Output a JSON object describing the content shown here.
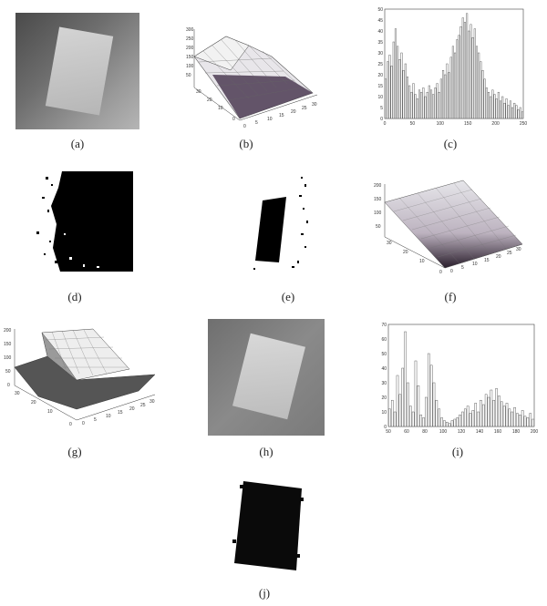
{
  "captions": [
    "(a)",
    "(b)",
    "(c)",
    "(d)",
    "(e)",
    "(f)",
    "(g)",
    "(h)",
    "(i)",
    "(j)"
  ],
  "ticks": {
    "b_z": [
      "300",
      "250",
      "200",
      "150",
      "100",
      "50"
    ],
    "b_y": [
      "30",
      "20",
      "10",
      "0"
    ],
    "b_x": [
      "0",
      "5",
      "10",
      "15",
      "20",
      "25",
      "30"
    ],
    "f_z": [
      "200",
      "150",
      "100",
      "50"
    ],
    "f_y": [
      "30",
      "20",
      "10",
      "0"
    ],
    "f_x": [
      "0",
      "5",
      "10",
      "15",
      "20",
      "25",
      "30"
    ],
    "g_z": [
      "200",
      "150",
      "100",
      "50",
      "0"
    ],
    "g_y": [
      "30",
      "20",
      "10",
      "0"
    ],
    "g_x": [
      "0",
      "5",
      "10",
      "15",
      "20",
      "25",
      "30"
    ]
  },
  "chart_data": [
    {
      "type": "bar",
      "xlim": [
        0,
        250
      ],
      "ylim": [
        0,
        50
      ],
      "x_ticks": [
        "0",
        "50",
        "100",
        "150",
        "200",
        "250"
      ],
      "y_ticks": [
        "0",
        "5",
        "10",
        "15",
        "20",
        "25",
        "30",
        "35",
        "40",
        "45",
        "50"
      ],
      "values": [
        18,
        26,
        29,
        24,
        35,
        41,
        33,
        27,
        30,
        22,
        25,
        19,
        15,
        12,
        16,
        11,
        9,
        13,
        12,
        14,
        10,
        12,
        15,
        13,
        11,
        14,
        16,
        12,
        18,
        22,
        20,
        25,
        21,
        28,
        33,
        30,
        36,
        38,
        42,
        46,
        44,
        48,
        40,
        43,
        37,
        41,
        33,
        30,
        26,
        22,
        18,
        14,
        12,
        10,
        13,
        11,
        9,
        12,
        8,
        10,
        7,
        9,
        6,
        8,
        5,
        7,
        6,
        4,
        5,
        3
      ]
    },
    {
      "type": "bar",
      "xlim": [
        50,
        200
      ],
      "ylim": [
        0,
        70
      ],
      "x_ticks": [
        "50",
        "60",
        "80",
        "100",
        "120",
        "140",
        "160",
        "180",
        "200"
      ],
      "y_ticks": [
        "0",
        "10",
        "20",
        "30",
        "40",
        "50",
        "60",
        "70"
      ],
      "values": [
        12,
        18,
        10,
        35,
        22,
        40,
        65,
        30,
        14,
        10,
        45,
        28,
        8,
        6,
        20,
        50,
        42,
        30,
        18,
        12,
        6,
        4,
        3,
        2,
        4,
        5,
        6,
        8,
        10,
        12,
        14,
        9,
        11,
        16,
        10,
        18,
        15,
        22,
        20,
        25,
        18,
        26,
        21,
        17,
        14,
        16,
        12,
        10,
        13,
        9,
        8,
        11,
        7,
        6,
        9,
        5
      ]
    }
  ]
}
